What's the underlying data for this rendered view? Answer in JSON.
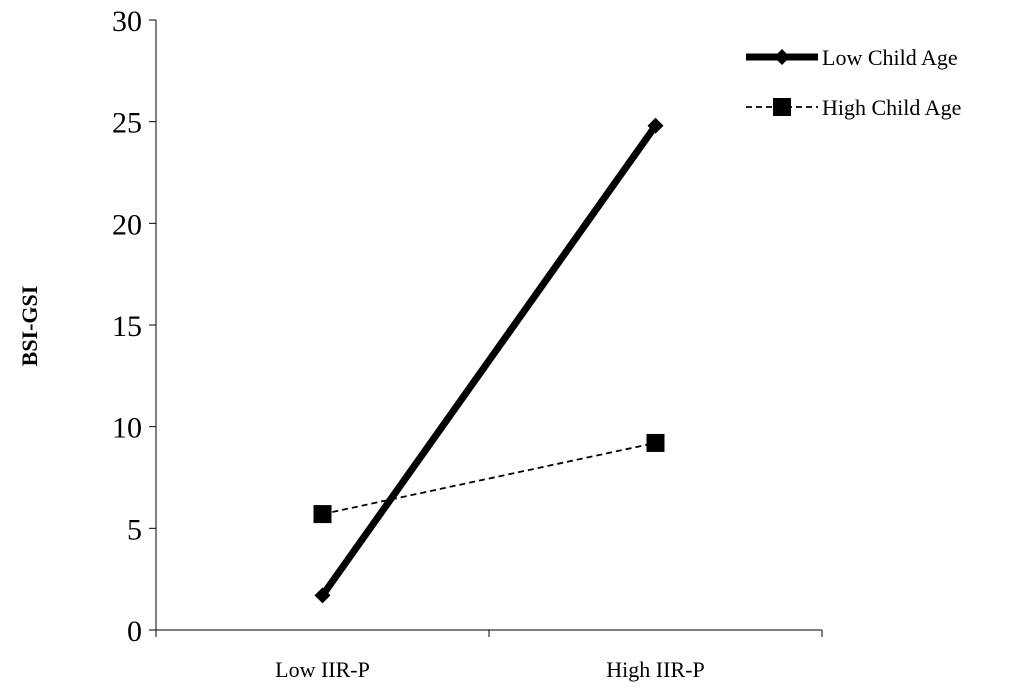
{
  "chart_data": {
    "type": "line",
    "categories": [
      "Low IIR-P",
      "High IIR-P"
    ],
    "ylabel": "BSI-GSI",
    "xlabel": "",
    "ylim": [
      0,
      30
    ],
    "yticks": [
      0,
      5,
      10,
      15,
      20,
      25,
      30
    ],
    "grid": false,
    "legend": "top-right",
    "series": [
      {
        "name": "Low Child Age",
        "values": [
          1.7,
          24.8
        ],
        "marker": "diamond",
        "line": "solid-thick",
        "color": "#000000"
      },
      {
        "name": "High Child Age",
        "values": [
          5.7,
          9.2
        ],
        "marker": "square",
        "line": "dashed",
        "color": "#000000"
      }
    ]
  }
}
